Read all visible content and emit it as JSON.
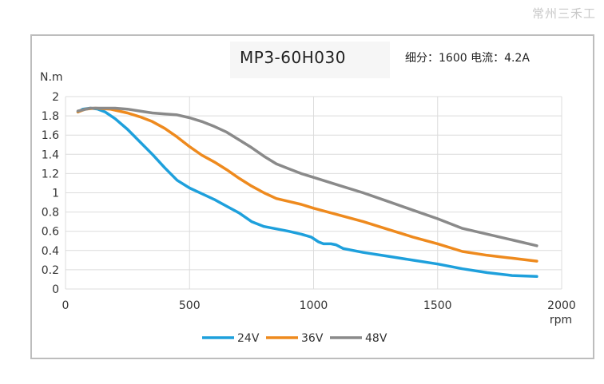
{
  "watermark": "常州三禾工",
  "chart_data": {
    "type": "line",
    "title": "MP3-60H030",
    "subtitle": "细分：1600 电流：4.2A",
    "ylabel": "N.m",
    "xlabel": "rpm",
    "xlim": [
      0,
      2000
    ],
    "ylim": [
      0,
      2
    ],
    "xticks": [
      "0",
      "500",
      "1000",
      "1500",
      "2000"
    ],
    "yticks": [
      "0",
      "0.2",
      "0.4",
      "0.6",
      "0.8",
      "1",
      "1.2",
      "1.4",
      "1.6",
      "1.8",
      "2"
    ],
    "grid": true,
    "legend_position": "bottom",
    "series": [
      {
        "name": "24V",
        "color": "#1ea0dc",
        "points": [
          [
            50,
            1.84
          ],
          [
            70,
            1.87
          ],
          [
            100,
            1.88
          ],
          [
            130,
            1.87
          ],
          [
            160,
            1.84
          ],
          [
            200,
            1.77
          ],
          [
            250,
            1.66
          ],
          [
            300,
            1.53
          ],
          [
            350,
            1.4
          ],
          [
            400,
            1.26
          ],
          [
            450,
            1.13
          ],
          [
            500,
            1.05
          ],
          [
            550,
            0.99
          ],
          [
            600,
            0.93
          ],
          [
            650,
            0.86
          ],
          [
            700,
            0.79
          ],
          [
            750,
            0.7
          ],
          [
            800,
            0.65
          ],
          [
            900,
            0.6
          ],
          [
            950,
            0.57
          ],
          [
            990,
            0.54
          ],
          [
            1020,
            0.49
          ],
          [
            1040,
            0.47
          ],
          [
            1070,
            0.47
          ],
          [
            1090,
            0.46
          ],
          [
            1120,
            0.42
          ],
          [
            1200,
            0.38
          ],
          [
            1300,
            0.34
          ],
          [
            1400,
            0.3
          ],
          [
            1500,
            0.26
          ],
          [
            1600,
            0.21
          ],
          [
            1700,
            0.17
          ],
          [
            1800,
            0.14
          ],
          [
            1900,
            0.13
          ]
        ]
      },
      {
        "name": "36V",
        "color": "#ee8a1e",
        "points": [
          [
            50,
            1.84
          ],
          [
            80,
            1.87
          ],
          [
            120,
            1.88
          ],
          [
            180,
            1.87
          ],
          [
            250,
            1.83
          ],
          [
            300,
            1.79
          ],
          [
            350,
            1.74
          ],
          [
            400,
            1.67
          ],
          [
            450,
            1.58
          ],
          [
            500,
            1.48
          ],
          [
            550,
            1.39
          ],
          [
            600,
            1.32
          ],
          [
            650,
            1.24
          ],
          [
            700,
            1.15
          ],
          [
            750,
            1.07
          ],
          [
            800,
            1.0
          ],
          [
            850,
            0.94
          ],
          [
            900,
            0.91
          ],
          [
            950,
            0.88
          ],
          [
            1000,
            0.84
          ],
          [
            1100,
            0.77
          ],
          [
            1200,
            0.7
          ],
          [
            1300,
            0.62
          ],
          [
            1400,
            0.54
          ],
          [
            1500,
            0.47
          ],
          [
            1600,
            0.39
          ],
          [
            1700,
            0.35
          ],
          [
            1800,
            0.32
          ],
          [
            1900,
            0.29
          ]
        ]
      },
      {
        "name": "48V",
        "color": "#8a8a8a",
        "points": [
          [
            50,
            1.85
          ],
          [
            100,
            1.88
          ],
          [
            150,
            1.88
          ],
          [
            200,
            1.88
          ],
          [
            250,
            1.87
          ],
          [
            300,
            1.85
          ],
          [
            350,
            1.83
          ],
          [
            400,
            1.82
          ],
          [
            450,
            1.81
          ],
          [
            500,
            1.78
          ],
          [
            550,
            1.74
          ],
          [
            600,
            1.69
          ],
          [
            650,
            1.63
          ],
          [
            700,
            1.55
          ],
          [
            750,
            1.47
          ],
          [
            800,
            1.38
          ],
          [
            850,
            1.3
          ],
          [
            900,
            1.25
          ],
          [
            950,
            1.2
          ],
          [
            1000,
            1.16
          ],
          [
            1100,
            1.08
          ],
          [
            1200,
            1.0
          ],
          [
            1300,
            0.91
          ],
          [
            1400,
            0.82
          ],
          [
            1500,
            0.73
          ],
          [
            1600,
            0.63
          ],
          [
            1700,
            0.57
          ],
          [
            1800,
            0.51
          ],
          [
            1900,
            0.45
          ]
        ]
      }
    ]
  }
}
